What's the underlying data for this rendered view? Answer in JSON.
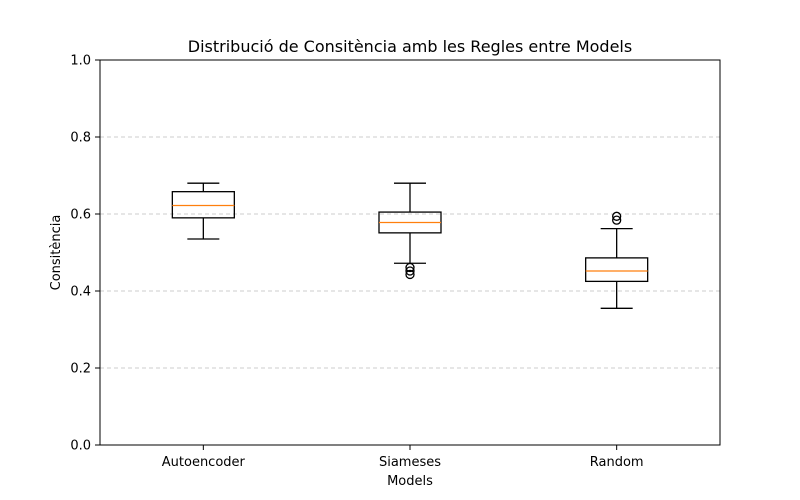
{
  "chart_data": {
    "type": "box",
    "title": "Distribució de Consitència amb les Regles entre Models",
    "xlabel": "Models",
    "ylabel": "Consitència",
    "ylim": [
      0.0,
      1.0
    ],
    "yticks": [
      "0.0",
      "0.2",
      "0.4",
      "0.6",
      "0.8",
      "1.0"
    ],
    "grid": "y-dashed",
    "categories": [
      "Autoencoder",
      "Siameses",
      "Random"
    ],
    "boxes": [
      {
        "whisker_low": 0.535,
        "q1": 0.59,
        "median": 0.622,
        "q3": 0.658,
        "whisker_high": 0.68,
        "outliers": []
      },
      {
        "whisker_low": 0.472,
        "q1": 0.551,
        "median": 0.578,
        "q3": 0.605,
        "whisker_high": 0.68,
        "outliers": [
          0.443,
          0.452,
          0.461
        ]
      },
      {
        "whisker_low": 0.355,
        "q1": 0.425,
        "median": 0.452,
        "q3": 0.486,
        "whisker_high": 0.562,
        "outliers": [
          0.584,
          0.594
        ]
      }
    ],
    "colors": {
      "box": "#000000",
      "median": "#ff7f0e",
      "grid": "#cccccc"
    }
  }
}
